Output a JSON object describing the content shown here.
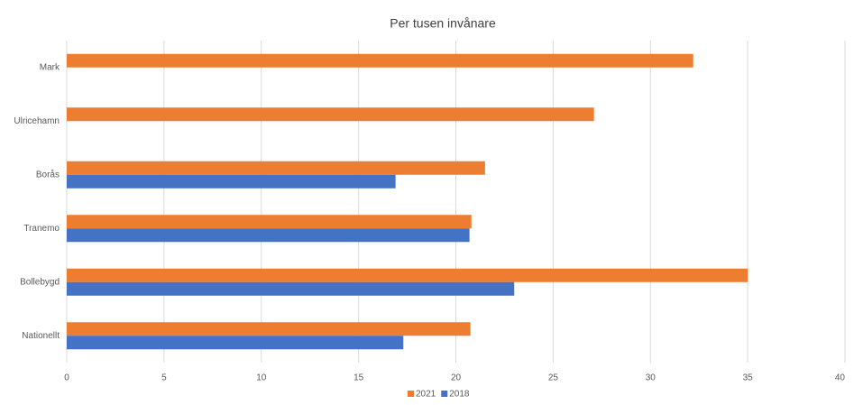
{
  "chart_data": {
    "type": "hbar",
    "title": "Per tusen invånare",
    "categories": [
      "Mark",
      "Ulricehamn",
      "Borås",
      "Tranemo",
      "Bollebygd",
      "Nationellt"
    ],
    "series": [
      {
        "name": "2021",
        "color": "#ed7d31",
        "values": [
          32.2,
          27.1,
          21.5,
          20.8,
          35.0,
          20.75
        ]
      },
      {
        "name": "2018",
        "color": "#4472c4",
        "values": [
          null,
          null,
          16.9,
          20.7,
          23.0,
          17.3
        ]
      }
    ],
    "xlim": [
      0,
      40
    ],
    "xticks": [
      0,
      5,
      10,
      15,
      20,
      25,
      30,
      35,
      40
    ],
    "grid": true,
    "legend": "bottom"
  }
}
